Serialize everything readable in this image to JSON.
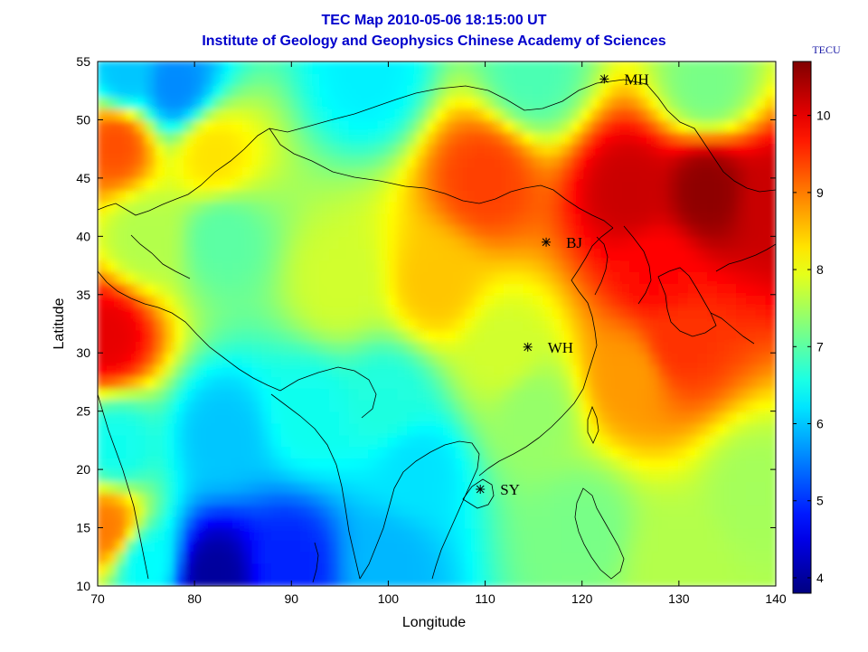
{
  "title": "TEC Map 2010-05-06 18:15:00 UT",
  "subtitle": "Institute of Geology and Geophysics Chinese Academy of Sciences",
  "chart_data": {
    "type": "heatmap",
    "xlabel": "Longitude",
    "ylabel": "Latitude",
    "xlim": [
      70,
      140
    ],
    "ylim": [
      10,
      55
    ],
    "xticks": [
      70,
      80,
      90,
      100,
      110,
      120,
      130,
      140
    ],
    "yticks": [
      10,
      15,
      20,
      25,
      30,
      35,
      40,
      45,
      50,
      55
    ],
    "colorbar": {
      "label": "TECU",
      "range": [
        3.8,
        10.7
      ],
      "ticks": [
        4,
        5,
        6,
        7,
        8,
        9,
        10
      ],
      "colormap": "jet"
    },
    "stations": [
      {
        "name": "MH",
        "lon": 122.3,
        "lat": 53.5
      },
      {
        "name": "BJ",
        "lon": 116.3,
        "lat": 39.5
      },
      {
        "name": "WH",
        "lon": 114.4,
        "lat": 30.5
      },
      {
        "name": "SY",
        "lon": 109.5,
        "lat": 18.3
      }
    ],
    "tec_features": [
      {
        "lon": 110,
        "lat": 45,
        "value": 9.4
      },
      {
        "lon": 125,
        "lat": 44,
        "value": 10.2
      },
      {
        "lon": 133,
        "lat": 44,
        "value": 10.6
      },
      {
        "lon": 140,
        "lat": 43,
        "value": 10.2
      },
      {
        "lon": 128,
        "lat": 37,
        "value": 9.8
      },
      {
        "lon": 130,
        "lat": 31,
        "value": 9.5
      },
      {
        "lon": 125,
        "lat": 28,
        "value": 8.8
      },
      {
        "lon": 71,
        "lat": 31.5,
        "value": 10.0
      },
      {
        "lon": 72,
        "lat": 48,
        "value": 9.3
      },
      {
        "lon": 71,
        "lat": 15,
        "value": 9.0
      },
      {
        "lon": 82,
        "lat": 47,
        "value": 8.3
      },
      {
        "lon": 105,
        "lat": 36,
        "value": 8.5
      },
      {
        "lon": 95,
        "lat": 36,
        "value": 7.8
      },
      {
        "lon": 83,
        "lat": 40,
        "value": 7.0
      },
      {
        "lon": 78,
        "lat": 53,
        "value": 5.6
      },
      {
        "lon": 73,
        "lat": 54,
        "value": 6.0
      },
      {
        "lon": 98,
        "lat": 54,
        "value": 6.3
      },
      {
        "lon": 115,
        "lat": 54,
        "value": 6.9
      },
      {
        "lon": 133,
        "lat": 53,
        "value": 7.2
      },
      {
        "lon": 83,
        "lat": 23,
        "value": 6.0
      },
      {
        "lon": 92,
        "lat": 25,
        "value": 6.5
      },
      {
        "lon": 103,
        "lat": 20,
        "value": 6.2
      },
      {
        "lon": 100,
        "lat": 26,
        "value": 6.6
      },
      {
        "lon": 82,
        "lat": 11,
        "value": 4.0
      },
      {
        "lon": 90,
        "lat": 12,
        "value": 4.9
      },
      {
        "lon": 100,
        "lat": 12,
        "value": 5.9
      },
      {
        "lon": 120,
        "lat": 15,
        "value": 7.2
      },
      {
        "lon": 130,
        "lat": 12,
        "value": 7.6
      },
      {
        "lon": 138,
        "lat": 18,
        "value": 7.5
      },
      {
        "lon": 115,
        "lat": 25,
        "value": 7.4
      },
      {
        "lon": 112,
        "lat": 30,
        "value": 7.8
      },
      {
        "lon": 75,
        "lat": 40,
        "value": 7.6
      },
      {
        "lon": 72,
        "lat": 22,
        "value": 6.5
      },
      {
        "lon": 75,
        "lat": 12,
        "value": 6.4
      }
    ]
  },
  "colors": {
    "title": "#0000cc",
    "station": "#000000",
    "colorbar_label": "#1a1aa6"
  }
}
